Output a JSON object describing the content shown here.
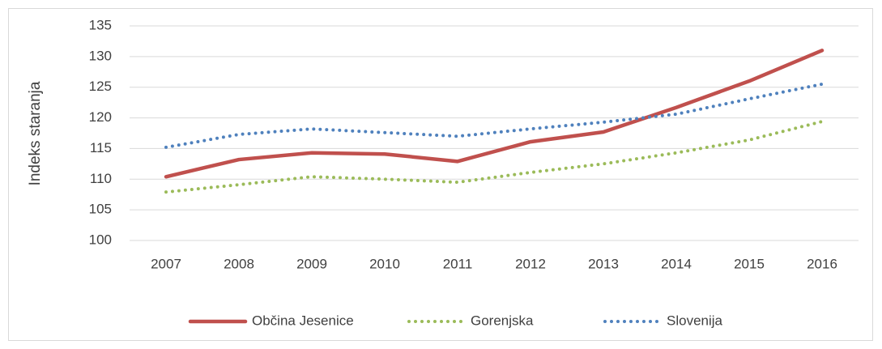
{
  "chart_data": {
    "type": "line",
    "y_label": "Indeks staranja",
    "categories": [
      "2007",
      "2008",
      "2009",
      "2010",
      "2011",
      "2012",
      "2013",
      "2014",
      "2015",
      "2016"
    ],
    "series": [
      {
        "name": "Občina Jesenice",
        "color": "#c0504d",
        "style": "solid",
        "values": [
          110.4,
          113.2,
          114.3,
          114.1,
          112.9,
          116.1,
          117.7,
          121.7,
          126.0,
          131.0
        ]
      },
      {
        "name": "Gorenjska",
        "color": "#9bbb59",
        "style": "dotted",
        "values": [
          107.9,
          109.1,
          110.4,
          110.0,
          109.5,
          111.1,
          112.5,
          114.3,
          116.4,
          119.4
        ]
      },
      {
        "name": "Slovenija",
        "color": "#4f81bd",
        "style": "dotted",
        "values": [
          115.2,
          117.3,
          118.2,
          117.6,
          117.0,
          118.2,
          119.3,
          120.6,
          123.1,
          125.5
        ]
      }
    ],
    "ylim": [
      100,
      135
    ],
    "yticks": [
      100,
      105,
      110,
      115,
      120,
      125,
      130,
      135
    ],
    "grid": true,
    "legend": "bottom"
  }
}
